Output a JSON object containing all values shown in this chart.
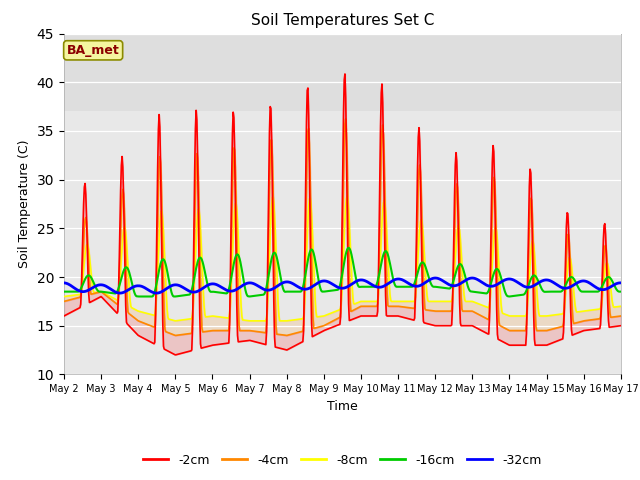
{
  "title": "Soil Temperatures Set C",
  "xlabel": "Time",
  "ylabel": "Soil Temperature (C)",
  "ylim": [
    10,
    45
  ],
  "xlim_days": [
    2,
    17
  ],
  "background_color": "#ffffff",
  "plot_bg_color": "#e8e8e8",
  "annotation_text": "BA_met",
  "annotation_color": "#8B0000",
  "annotation_bg": "#f5f5a0",
  "annotation_border": "#8B8B00",
  "series_colors": {
    "-2cm": "#ff0000",
    "-4cm": "#ff8800",
    "-8cm": "#ffff00",
    "-16cm": "#00cc00",
    "-32cm": "#0000ff"
  },
  "series_linewidths": {
    "-2cm": 1.2,
    "-4cm": 1.2,
    "-8cm": 1.2,
    "-16cm": 1.5,
    "-32cm": 2.0
  },
  "yticks": [
    10,
    15,
    20,
    25,
    30,
    35,
    40,
    45
  ],
  "xtick_labels": [
    "May 2",
    "May 3",
    "May 4",
    "May 5",
    "May 6",
    "May 7",
    "May 8",
    "May 9",
    "May 10",
    "May 11",
    "May 12",
    "May 13",
    "May 14",
    "May 15",
    "May 16",
    "May 17"
  ],
  "xtick_positions": [
    2,
    3,
    4,
    5,
    6,
    7,
    8,
    9,
    10,
    11,
    12,
    13,
    14,
    15,
    16,
    17
  ],
  "peaks_2cm": [
    30.5,
    29.0,
    35.0,
    38.0,
    36.5,
    37.5,
    38.0,
    41.0,
    41.0,
    39.0,
    32.5,
    33.0,
    34.0,
    29.0,
    25.0,
    26.0,
    30.0
  ],
  "troughs_2cm": [
    16.0,
    18.0,
    14.0,
    12.0,
    13.0,
    13.5,
    12.5,
    14.5,
    16.0,
    16.0,
    15.0,
    15.0,
    13.0,
    13.0,
    14.5,
    15.0,
    17.5
  ],
  "peaks_4cm": [
    27.0,
    25.5,
    31.5,
    33.0,
    32.5,
    34.0,
    34.5,
    36.0,
    36.5,
    35.0,
    29.0,
    30.0,
    30.5,
    26.5,
    23.0,
    23.5,
    27.5
  ],
  "troughs_4cm": [
    17.5,
    18.5,
    15.5,
    14.0,
    14.5,
    14.5,
    14.0,
    15.0,
    17.0,
    17.0,
    16.5,
    16.5,
    14.5,
    14.5,
    15.5,
    16.0,
    18.0
  ],
  "peaks_8cm": [
    24.0,
    23.0,
    26.5,
    27.0,
    27.0,
    28.0,
    28.5,
    28.0,
    28.5,
    27.5,
    25.0,
    25.5,
    25.0,
    23.0,
    21.5,
    21.5,
    24.0
  ],
  "troughs_8cm": [
    18.0,
    18.5,
    16.5,
    15.5,
    16.0,
    15.5,
    15.5,
    16.0,
    17.5,
    17.5,
    17.5,
    17.5,
    16.0,
    16.0,
    16.5,
    17.0,
    18.5
  ],
  "peaks_16cm": [
    20.5,
    20.0,
    21.5,
    22.0,
    22.0,
    22.5,
    22.5,
    23.0,
    23.0,
    22.5,
    21.0,
    21.5,
    20.5,
    20.0,
    20.0,
    20.0,
    20.5
  ],
  "troughs_16cm": [
    18.5,
    18.5,
    18.0,
    18.0,
    18.5,
    18.0,
    18.5,
    18.5,
    19.0,
    19.0,
    19.0,
    18.5,
    18.0,
    18.5,
    18.5,
    18.5,
    18.5
  ],
  "base_32cm": [
    19.0,
    18.8,
    18.7,
    18.8,
    18.9,
    19.0,
    19.1,
    19.2,
    19.3,
    19.4,
    19.5,
    19.5,
    19.4,
    19.3,
    19.2,
    19.0,
    19.0
  ]
}
